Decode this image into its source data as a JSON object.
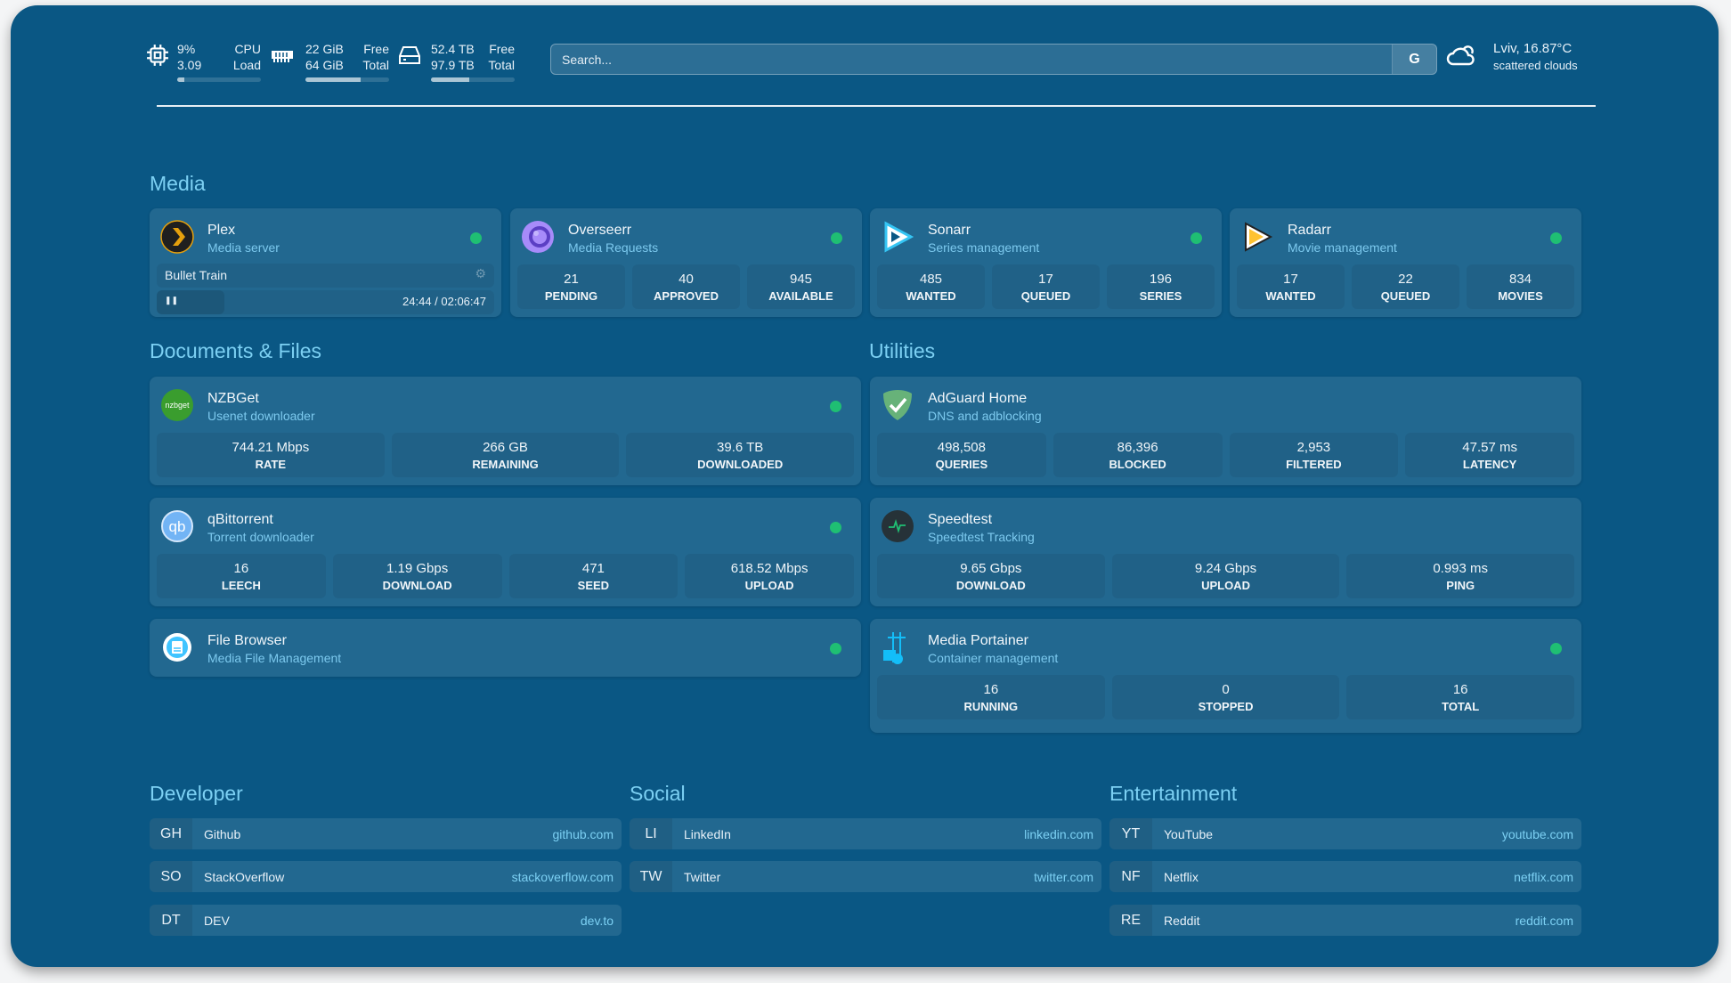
{
  "header": {
    "cpu": {
      "icon": "cpu-icon",
      "value1": "9%",
      "label1": "CPU",
      "value2": "3.09",
      "label2": "Load",
      "usage": 0.09
    },
    "memory": {
      "icon": "memory-icon",
      "value1": "22 GiB",
      "label1": "Free",
      "value2": "64 GiB",
      "label2": "Total",
      "usage": 0.66
    },
    "disk": {
      "icon": "disk-icon",
      "value1": "52.4 TB",
      "label1": "Free",
      "value2": "97.9 TB",
      "label2": "Total",
      "usage": 0.46
    },
    "search": {
      "placeholder": "Search...",
      "button": "G"
    },
    "weather": {
      "icon": "cloud-icon",
      "location": "Lviv, 16.87°C",
      "condition": "scattered clouds"
    }
  },
  "groups": {
    "media": {
      "title": "Media"
    },
    "docs": {
      "title": "Documents & Files"
    },
    "utilities": {
      "title": "Utilities"
    },
    "developer": {
      "title": "Developer"
    },
    "social": {
      "title": "Social"
    },
    "entertainment": {
      "title": "Entertainment"
    }
  },
  "status_color": "#1fbf73",
  "services": [
    {
      "id": "plex",
      "name": "Plex",
      "description": "Media server",
      "icon": "plex-icon",
      "status": "up",
      "now_playing": {
        "title": "Bullet Train",
        "time": "24:44 / 02:06:47",
        "progress": 0.2
      }
    },
    {
      "id": "overseerr",
      "name": "Overseerr",
      "description": "Media Requests",
      "icon": "overseerr-icon",
      "status": "up",
      "stats": [
        {
          "value": "21",
          "label": "PENDING"
        },
        {
          "value": "40",
          "label": "APPROVED"
        },
        {
          "value": "945",
          "label": "AVAILABLE"
        }
      ]
    },
    {
      "id": "sonarr",
      "name": "Sonarr",
      "description": "Series management",
      "icon": "sonarr-icon",
      "status": "up",
      "stats": [
        {
          "value": "485",
          "label": "WANTED"
        },
        {
          "value": "17",
          "label": "QUEUED"
        },
        {
          "value": "196",
          "label": "SERIES"
        }
      ]
    },
    {
      "id": "radarr",
      "name": "Radarr",
      "description": "Movie management",
      "icon": "radarr-icon",
      "status": "up",
      "stats": [
        {
          "value": "17",
          "label": "WANTED"
        },
        {
          "value": "22",
          "label": "QUEUED"
        },
        {
          "value": "834",
          "label": "MOVIES"
        }
      ]
    },
    {
      "id": "nzbget",
      "name": "NZBGet",
      "description": "Usenet downloader",
      "icon": "nzbget-icon",
      "logo_text": "nzbget",
      "status": "up",
      "stats": [
        {
          "value": "744.21 Mbps",
          "label": "RATE"
        },
        {
          "value": "266 GB",
          "label": "REMAINING"
        },
        {
          "value": "39.6 TB",
          "label": "DOWNLOADED"
        }
      ]
    },
    {
      "id": "qbittorrent",
      "name": "qBittorrent",
      "description": "Torrent downloader",
      "icon": "qbittorrent-icon",
      "logo_text": "qb",
      "status": "up",
      "stats": [
        {
          "value": "16",
          "label": "LEECH"
        },
        {
          "value": "1.19 Gbps",
          "label": "DOWNLOAD"
        },
        {
          "value": "471",
          "label": "SEED"
        },
        {
          "value": "618.52 Mbps",
          "label": "UPLOAD"
        }
      ]
    },
    {
      "id": "filebrowser",
      "name": "File Browser",
      "description": "Media File Management",
      "icon": "filebrowser-icon",
      "status": "up"
    },
    {
      "id": "adguard",
      "name": "AdGuard Home",
      "description": "DNS and adblocking",
      "icon": "adguard-icon",
      "stats": [
        {
          "value": "498,508",
          "label": "QUERIES"
        },
        {
          "value": "86,396",
          "label": "BLOCKED"
        },
        {
          "value": "2,953",
          "label": "FILTERED"
        },
        {
          "value": "47.57 ms",
          "label": "LATENCY"
        }
      ]
    },
    {
      "id": "speedtest",
      "name": "Speedtest",
      "description": "Speedtest Tracking",
      "icon": "speedtest-icon",
      "stats": [
        {
          "value": "9.65 Gbps",
          "label": "DOWNLOAD"
        },
        {
          "value": "9.24 Gbps",
          "label": "UPLOAD"
        },
        {
          "value": "0.993 ms",
          "label": "PING"
        }
      ]
    },
    {
      "id": "portainer",
      "name": "Media Portainer",
      "description": "Container management",
      "icon": "portainer-icon",
      "status": "up",
      "stats": [
        {
          "value": "16",
          "label": "RUNNING"
        },
        {
          "value": "0",
          "label": "STOPPED"
        },
        {
          "value": "16",
          "label": "TOTAL"
        }
      ]
    }
  ],
  "bookmarks": {
    "developer": [
      {
        "abbr": "GH",
        "name": "Github",
        "url": "github.com"
      },
      {
        "abbr": "SO",
        "name": "StackOverflow",
        "url": "stackoverflow.com"
      },
      {
        "abbr": "DT",
        "name": "DEV",
        "url": "dev.to"
      }
    ],
    "social": [
      {
        "abbr": "LI",
        "name": "LinkedIn",
        "url": "linkedin.com"
      },
      {
        "abbr": "TW",
        "name": "Twitter",
        "url": "twitter.com"
      }
    ],
    "entertainment": [
      {
        "abbr": "YT",
        "name": "YouTube",
        "url": "youtube.com"
      },
      {
        "abbr": "NF",
        "name": "Netflix",
        "url": "netflix.com"
      },
      {
        "abbr": "RE",
        "name": "Reddit",
        "url": "reddit.com"
      }
    ]
  }
}
